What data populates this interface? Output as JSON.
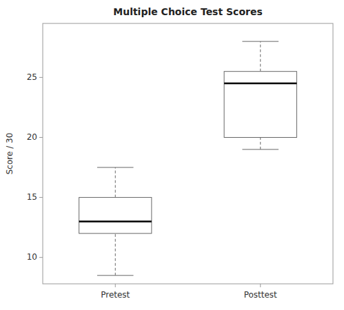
{
  "chart_data": {
    "type": "box",
    "title": "Multiple Choice Test Scores",
    "ylabel": "Score / 30",
    "categories": [
      "Pretest",
      "Posttest"
    ],
    "values": [
      {
        "whisker_low": 8.5,
        "q1": 12.0,
        "median": 13.0,
        "q3": 15.0,
        "whisker_high": 17.5
      },
      {
        "whisker_low": 19.0,
        "q1": 20.0,
        "median": 24.5,
        "q3": 25.5,
        "whisker_high": 28.0
      }
    ],
    "color": "#666666",
    "ylim": [
      7.8,
      29.5
    ],
    "yticks": [
      10,
      15,
      20,
      25
    ]
  }
}
